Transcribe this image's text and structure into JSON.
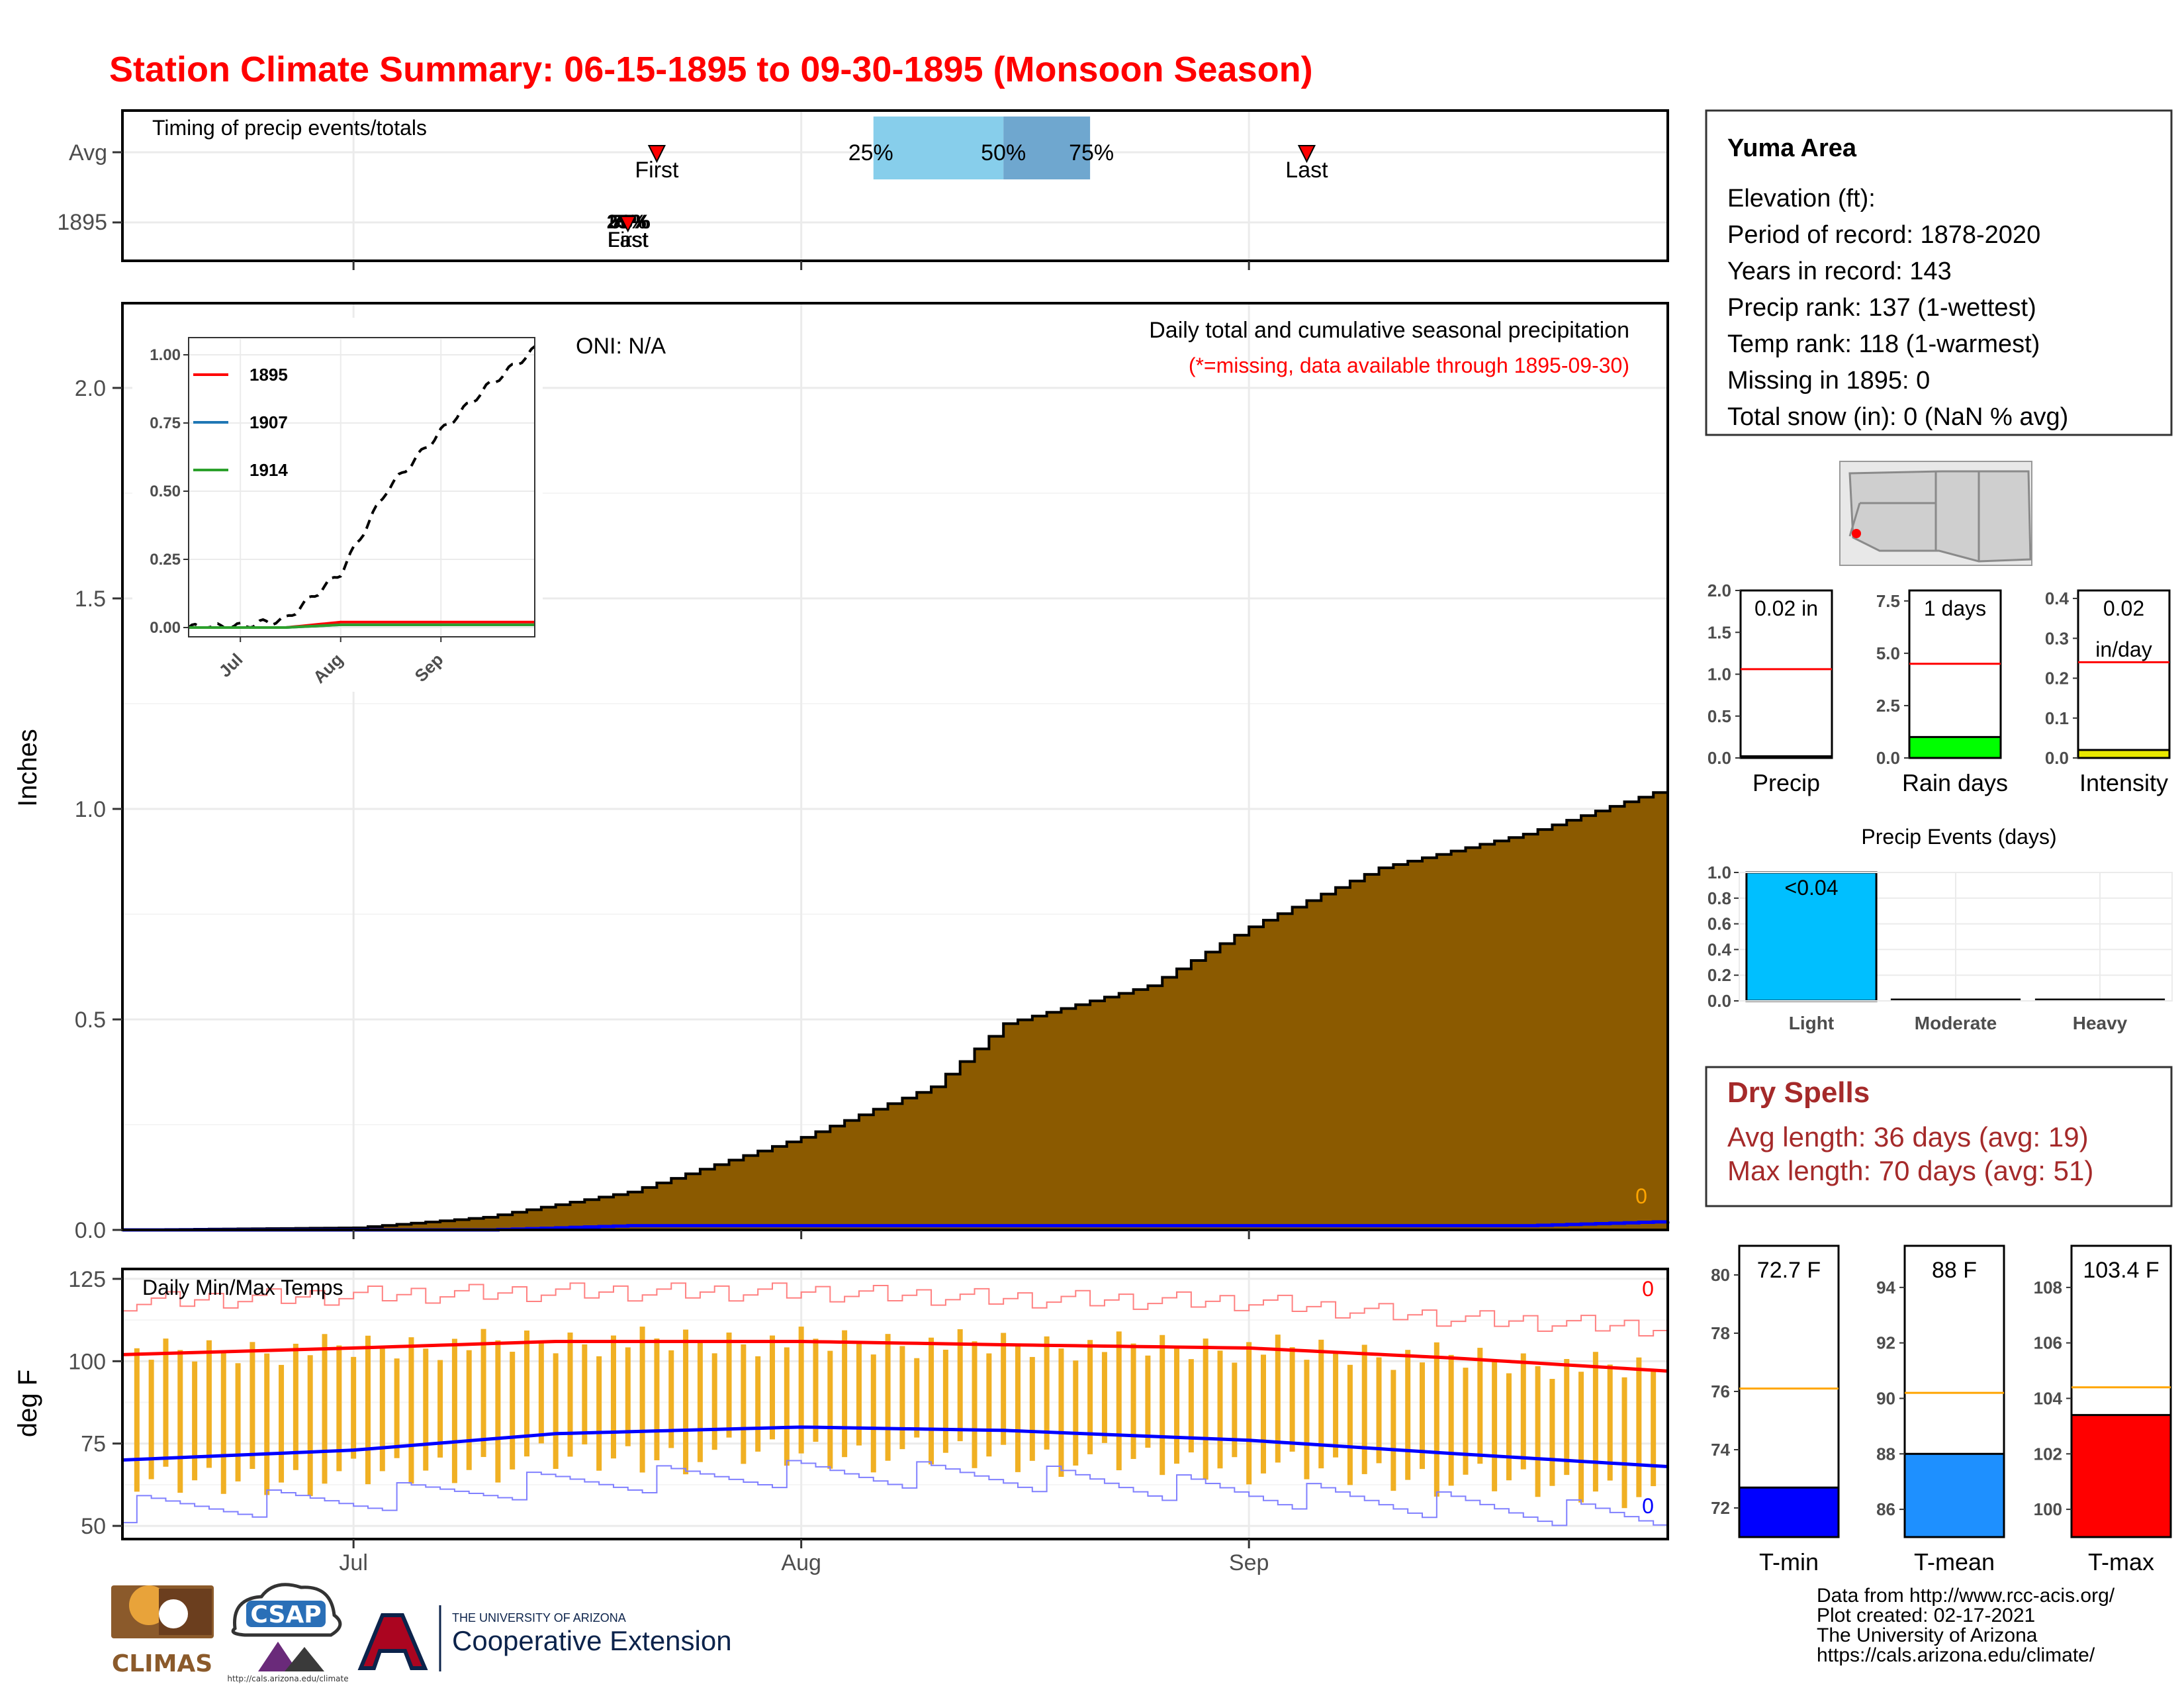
{
  "title": "Station Climate Summary: 06-15-1895 to 09-30-1895 (Monsoon Season)",
  "colors": {
    "title": "#ff0000",
    "brown": "#8b5a00",
    "gold": "#f0b023",
    "red": "#ff0000",
    "blue": "#0000ff",
    "drySpell": "#a52a2a",
    "lightBlue": "#00bfff",
    "green": "#00ff00"
  },
  "timing": {
    "label": "Timing of precip events/totals",
    "rows": [
      "Avg",
      "1895"
    ],
    "avg": {
      "first_label": "First",
      "last_label": "Last",
      "first_date": "1895-07-22",
      "last_date": "1895-09-05",
      "q25_label": "25%",
      "q50_label": "50%",
      "q75_label": "75%",
      "q25_date": "1895-08-06",
      "q50_date": "1895-08-15",
      "q75_date": "1895-08-21"
    },
    "y1895": {
      "first_label": "First",
      "last_label": "Last",
      "q25_label": "25%",
      "q50_label": "50%",
      "q75_label": "75%",
      "date": "1895-07-20"
    }
  },
  "main": {
    "ylabel": "Inches",
    "yticks": [
      "0.0",
      "0.5",
      "1.0",
      "1.5",
      "2.0"
    ],
    "xticks": [
      "Jul",
      "Aug",
      "Sep"
    ],
    "oni": "ONI: N/A",
    "caption": "Daily total and cumulative seasonal precipitation",
    "missing_note": "(*=missing, data available through 1895-09-30)",
    "zero_label": "0"
  },
  "inset": {
    "yticks": [
      "0.00",
      "0.25",
      "0.50",
      "0.75",
      "1.00"
    ],
    "xticks": [
      "Jul",
      "Aug",
      "Sep"
    ],
    "legend": [
      {
        "name": "1895",
        "color": "#ff0000"
      },
      {
        "name": "1907",
        "color": "#1f77b4"
      },
      {
        "name": "1914",
        "color": "#2ca02c"
      }
    ]
  },
  "temps": {
    "ylabel": "deg F",
    "label": "Daily Min/Max Temps",
    "yticks": [
      "50",
      "75",
      "100",
      "125"
    ],
    "xticks": [
      "Jul",
      "Aug",
      "Sep"
    ],
    "max_count": "0",
    "min_count": "0"
  },
  "info": {
    "station": "Yuma Area",
    "lines": [
      "Elevation (ft):",
      "Period of record: 1878-2020",
      "Years in record: 143",
      "Precip rank: 137 (1-wettest)",
      "Temp rank: 118 (1-warmest)",
      "Missing in 1895: 0",
      "Total snow (in): 0 (NaN % avg)"
    ]
  },
  "small_bars": [
    {
      "name": "Precip",
      "label_a": "0.02 in",
      "label_b": "",
      "value": 0.02,
      "avg": 1.06,
      "ymax": 2.0,
      "yticks": [
        "0.0",
        "0.5",
        "1.0",
        "1.5",
        "2.0"
      ],
      "tick_vals": [
        0,
        0.5,
        1,
        1.5,
        2
      ],
      "fill": "#ffffff"
    },
    {
      "name": "Rain days",
      "label_a": "1 days",
      "label_b": "",
      "value": 1,
      "avg": 4.5,
      "ymax": 8.0,
      "yticks": [
        "0.0",
        "2.5",
        "5.0",
        "7.5"
      ],
      "tick_vals": [
        0,
        2.5,
        5,
        7.5
      ],
      "fill": "#00ff00"
    },
    {
      "name": "Intensity",
      "label_a": "0.02",
      "label_b": "in/day",
      "value": 0.02,
      "avg": 0.24,
      "ymax": 0.42,
      "yticks": [
        "0.0",
        "0.1",
        "0.2",
        "0.3",
        "0.4"
      ],
      "tick_vals": [
        0,
        0.1,
        0.2,
        0.3,
        0.4
      ],
      "fill": "#e8e800"
    }
  ],
  "events": {
    "title": "Precip Events (days)",
    "categories": [
      "Light",
      "Moderate",
      "Heavy"
    ],
    "values": [
      1,
      0,
      0
    ],
    "bar_label": "<0.04",
    "yticks": [
      "0.0",
      "0.2",
      "0.4",
      "0.6",
      "0.8",
      "1.0"
    ]
  },
  "dry_spells": {
    "title": "Dry Spells",
    "avg": "Avg length: 36 days (avg: 19)",
    "max": "Max length: 70 days (avg: 51)"
  },
  "temp_bars": [
    {
      "name": "T-min",
      "label": "72.7 F",
      "value": 72.7,
      "avg": 76.1,
      "min": 71,
      "max": 81,
      "yticks": [
        "72",
        "74",
        "76",
        "78",
        "80"
      ],
      "tick_vals": [
        72,
        74,
        76,
        78,
        80
      ],
      "fill": "#0000ff"
    },
    {
      "name": "T-mean",
      "label": "88 F",
      "value": 88,
      "avg": 90.2,
      "min": 85,
      "max": 95.5,
      "yticks": [
        "86",
        "88",
        "90",
        "92",
        "94"
      ],
      "tick_vals": [
        86,
        88,
        90,
        92,
        94
      ],
      "fill": "#1e90ff"
    },
    {
      "name": "T-max",
      "label": "103.4 F",
      "value": 103.4,
      "avg": 104.4,
      "min": 99,
      "max": 109.5,
      "yticks": [
        "100",
        "102",
        "104",
        "106",
        "108"
      ],
      "tick_vals": [
        100,
        102,
        104,
        106,
        108
      ],
      "fill": "#ff0000"
    }
  ],
  "credits": [
    "Data from http://www.rcc-acis.org/",
    "Plot created: 02-17-2021",
    "The University of Arizona",
    "https://cals.arizona.edu/climate/"
  ],
  "logos": {
    "climas": "CLIMAS",
    "csap": "CSAP",
    "csap_url": "http://cals.arizona.edu/climate",
    "ua_small": "THE UNIVERSITY OF ARIZONA",
    "ua_big": "Cooperative Extension"
  },
  "chart_data": [
    {
      "type": "area",
      "title": "Daily total and cumulative seasonal precipitation",
      "xlabel": "",
      "ylabel": "Inches",
      "ylim": [
        0,
        2.2
      ],
      "x": [
        "1895-06-15",
        "1895-07-01",
        "1895-07-10",
        "1895-07-20",
        "1895-08-01",
        "1895-08-10",
        "1895-08-15",
        "1895-08-25",
        "1895-09-01",
        "1895-09-10",
        "1895-09-20",
        "1895-09-30"
      ],
      "series": [
        {
          "name": "",
          "values": [
            0.0,
            0.005,
            0.03,
            0.09,
            0.22,
            0.34,
            0.49,
            0.58,
            0.72,
            0.86,
            0.94,
            1.05
          ]
        },
        {
          "name": "",
          "values": [
            0.0,
            0.0,
            0.0,
            0.01,
            0.01,
            0.01,
            0.01,
            0.01,
            0.01,
            0.01,
            0.01,
            0.02
          ]
        }
      ]
    },
    {
      "type": "line",
      "title": "",
      "ylim": [
        0,
        1.0
      ],
      "x": [
        "1895-06-15",
        "1895-07-01",
        "1895-07-15",
        "1895-08-01",
        "1895-08-15",
        "1895-09-01",
        "1895-09-15",
        "1895-09-30"
      ],
      "series": [
        {
          "name": "",
          "values": [
            0,
            0.005,
            0.03,
            0.2,
            0.5,
            0.72,
            0.88,
            1.02
          ]
        },
        {
          "name": "1895",
          "values": [
            0,
            0,
            0,
            0.02,
            0.02,
            0.02,
            0.02,
            0.02
          ]
        },
        {
          "name": "1907",
          "values": [
            0,
            0,
            0,
            0.01,
            0.01,
            0.01,
            0.01,
            0.01
          ]
        },
        {
          "name": "1914",
          "values": [
            0,
            0,
            0,
            0.01,
            0.01,
            0.01,
            0.01,
            0.01
          ]
        }
      ]
    },
    {
      "type": "line",
      "title": "Daily Min/Max Temps",
      "ylabel": "deg F",
      "ylim": [
        46,
        128
      ],
      "x": [
        "1895-06-15",
        "1895-07-01",
        "1895-07-15",
        "1895-08-01",
        "1895-08-15",
        "1895-09-01",
        "1895-09-15",
        "1895-09-30"
      ],
      "series": [
        {
          "name": "",
          "values": [
            102,
            104,
            106,
            106,
            105,
            104,
            101,
            97
          ]
        },
        {
          "name": "",
          "values": [
            70,
            73,
            78,
            80,
            79,
            76,
            72,
            68
          ]
        },
        {
          "name": "",
          "values": [
            118,
            120,
            121,
            121,
            119,
            118,
            113,
            110
          ]
        },
        {
          "name": "",
          "values": [
            55,
            58,
            63,
            66,
            65,
            60,
            56,
            52
          ]
        }
      ]
    },
    {
      "type": "bar",
      "title": "Precip Events (days)",
      "categories": [
        "Light",
        "Moderate",
        "Heavy"
      ],
      "values": [
        1,
        0,
        0
      ],
      "ylim": [
        0,
        1.0
      ]
    }
  ]
}
